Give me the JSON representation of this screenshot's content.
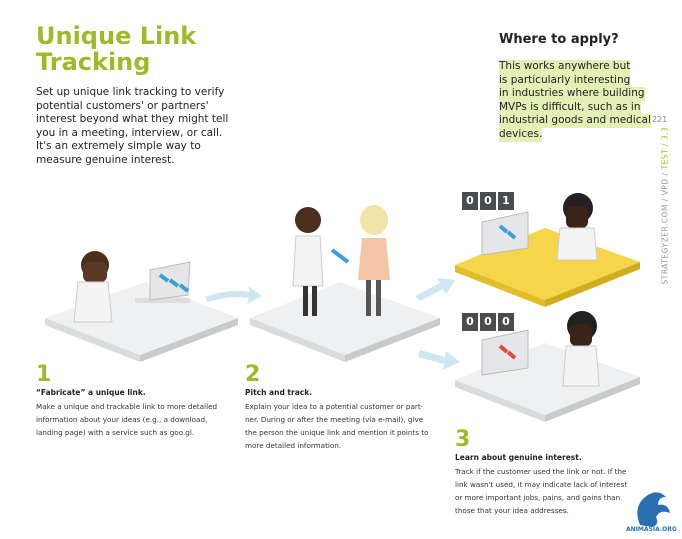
{
  "header": {
    "title_lines": [
      "Unique Link",
      "Tracking"
    ],
    "intro_lines": [
      "Set up unique link tracking to verify",
      "potential customers' or partners'",
      "interest beyond what they might tell",
      "you in a meeting, interview, or call.",
      "It's an extremely simple way to",
      "measure genuine interest."
    ]
  },
  "sidebar": {
    "heading": "Where to apply?",
    "lines": [
      "This works anywhere but",
      "is particularly interesting",
      "in industries where building",
      "MVPs is difficult, such as in",
      "industrial goods and medical",
      "devices."
    ],
    "page_number": "221",
    "breadcrumb": "STRATEGYZER.COM / VPD / ",
    "breadcrumb_highlight": "TEST / 3.3"
  },
  "counters": [
    [
      "0",
      "0",
      "1"
    ],
    [
      "0",
      "0",
      "0"
    ]
  ],
  "steps": [
    {
      "number": "1",
      "heading": "“Fabricate” a unique link.",
      "lines": [
        "Make a unique and trackable link to more detailed",
        "information about your ideas (e.g., a download,",
        "landing page) with a service such as goo.gl."
      ]
    },
    {
      "number": "2",
      "heading": "Pitch and track.",
      "lines": [
        "Explain your idea to a potential customer or part-",
        "ner. During or after the meeting (via e-mail), give",
        "the person the unique link and mention it points to",
        "more detailed information."
      ]
    },
    {
      "number": "3",
      "heading": "Learn about genuine interest.",
      "lines": [
        "Track if the customer used the link or not. If the",
        "link wasn't used, it may indicate lack of interest",
        "or more important jobs, pains, and gains than",
        "those that your idea addresses."
      ]
    }
  ],
  "watermark": "ANIMASIA.ORG"
}
